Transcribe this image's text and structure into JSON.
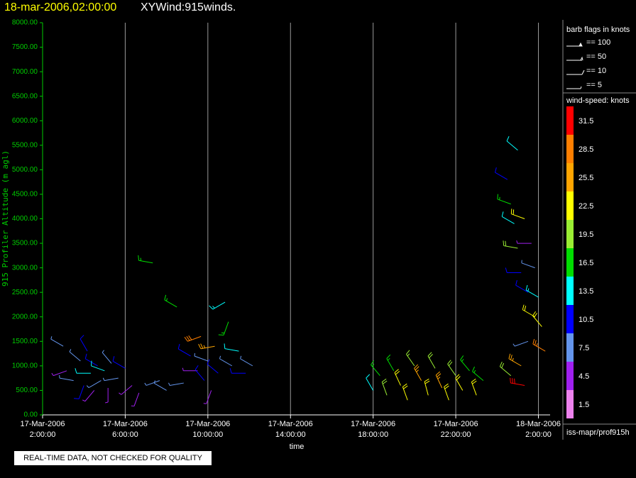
{
  "chart_data": {
    "type": "windbarb",
    "title": "18-mar-2006,02:00:00",
    "subtitle": "XYWind:915winds.",
    "ylabel": "915 Profiler Altitude (m agl)",
    "xlabel": "time",
    "ylim": [
      0,
      8000
    ],
    "yticks": [
      {
        "value": 0,
        "label": "0.00"
      },
      {
        "value": 500,
        "label": "500.00"
      },
      {
        "value": 1000,
        "label": "1000.00"
      },
      {
        "value": 1500,
        "label": "1500.00"
      },
      {
        "value": 2000,
        "label": "2000.00"
      },
      {
        "value": 2500,
        "label": "2500.00"
      },
      {
        "value": 3000,
        "label": "3000.00"
      },
      {
        "value": 3500,
        "label": "3500.00"
      },
      {
        "value": 4000,
        "label": "4000.00"
      },
      {
        "value": 4500,
        "label": "4500.00"
      },
      {
        "value": 5000,
        "label": "5000.00"
      },
      {
        "value": 5500,
        "label": "5500.00"
      },
      {
        "value": 6000,
        "label": "6000.00"
      },
      {
        "value": 6500,
        "label": "6500.00"
      },
      {
        "value": 7000,
        "label": "7000.00"
      },
      {
        "value": 7500,
        "label": "7500.00"
      },
      {
        "value": 8000,
        "label": "8000.00"
      }
    ],
    "xlim": [
      "2006-03-17T02:00",
      "2006-03-18T02:34"
    ],
    "xticks": [
      {
        "value": "2006-03-17T02:00",
        "label": [
          "17-Mar-2006",
          "2:00:00"
        ]
      },
      {
        "value": "2006-03-17T06:00",
        "label": [
          "17-Mar-2006",
          "6:00:00"
        ]
      },
      {
        "value": "2006-03-17T10:00",
        "label": [
          "17-Mar-2006",
          "10:00:00"
        ]
      },
      {
        "value": "2006-03-17T14:00",
        "label": [
          "17-Mar-2006",
          "14:00:00"
        ]
      },
      {
        "value": "2006-03-17T18:00",
        "label": [
          "17-Mar-2006",
          "18:00:00"
        ]
      },
      {
        "value": "2006-03-17T22:00",
        "label": [
          "17-Mar-2006",
          "22:00:00"
        ]
      },
      {
        "value": "2006-03-18T02:00",
        "label": [
          "18-Mar-2006",
          "2:00:00"
        ]
      }
    ],
    "grid": true,
    "barb_legend": {
      "title": "barb flags in knots",
      "entries": [
        "== 100",
        "== 50",
        "== 10",
        "== 5"
      ]
    },
    "colorbar": {
      "title": "wind-speed: knots",
      "levels": [
        1.5,
        4.5,
        7.5,
        10.5,
        13.5,
        16.5,
        19.5,
        22.5,
        25.5,
        28.5,
        31.5
      ],
      "colors": [
        "#ee82ee",
        "#a020f0",
        "#6495ed",
        "#0000ff",
        "#00ffff",
        "#00dd00",
        "#9aee33",
        "#ffff00",
        "#ffa500",
        "#ff7f00",
        "#ff0000"
      ]
    },
    "source": "iss-mapr/prof915h",
    "notice": "REAL-TIME DATA, NOT CHECKED FOR QUALITY",
    "barbs": [
      [
        "2006-03-17T03:00",
        1400,
        8,
        300
      ],
      [
        "2006-03-17T03:10",
        900,
        6,
        250
      ],
      [
        "2006-03-17T03:30",
        700,
        9,
        280
      ],
      [
        "2006-03-17T03:50",
        1100,
        7,
        310
      ],
      [
        "2006-03-17T04:00",
        600,
        11,
        200
      ],
      [
        "2006-03-17T04:10",
        1300,
        10,
        330
      ],
      [
        "2006-03-17T04:20",
        850,
        14,
        270
      ],
      [
        "2006-03-17T04:30",
        500,
        5,
        220
      ],
      [
        "2006-03-17T04:40",
        1000,
        12,
        300
      ],
      [
        "2006-03-17T04:50",
        700,
        8,
        240
      ],
      [
        "2006-03-17T05:00",
        900,
        13,
        290
      ],
      [
        "2006-03-17T05:10",
        550,
        6,
        180
      ],
      [
        "2006-03-17T05:20",
        1050,
        9,
        320
      ],
      [
        "2006-03-17T05:40",
        750,
        7,
        260
      ],
      [
        "2006-03-17T06:00",
        950,
        10,
        300
      ],
      [
        "2006-03-17T06:20",
        600,
        5,
        230
      ],
      [
        "2006-03-17T06:40",
        450,
        6,
        200
      ],
      [
        "2006-03-17T07:20",
        3100,
        18,
        280
      ],
      [
        "2006-03-17T07:40",
        700,
        8,
        250
      ],
      [
        "2006-03-17T08:00",
        500,
        7,
        300
      ],
      [
        "2006-03-17T08:30",
        2200,
        17,
        300
      ],
      [
        "2006-03-17T08:50",
        650,
        9,
        260
      ],
      [
        "2006-03-17T09:10",
        1200,
        10,
        300
      ],
      [
        "2006-03-17T09:30",
        900,
        6,
        270
      ],
      [
        "2006-03-17T09:40",
        1600,
        30,
        250
      ],
      [
        "2006-03-17T09:50",
        700,
        12,
        320
      ],
      [
        "2006-03-17T10:00",
        1100,
        8,
        290
      ],
      [
        "2006-03-17T10:10",
        500,
        5,
        200
      ],
      [
        "2006-03-17T10:20",
        1400,
        26,
        260
      ],
      [
        "2006-03-17T10:30",
        850,
        11,
        310
      ],
      [
        "2006-03-17T10:50",
        2300,
        15,
        240
      ],
      [
        "2006-03-17T11:00",
        1900,
        18,
        200
      ],
      [
        "2006-03-17T11:10",
        1000,
        9,
        300
      ],
      [
        "2006-03-17T11:30",
        1300,
        14,
        280
      ],
      [
        "2006-03-17T11:50",
        850,
        10,
        270
      ],
      [
        "2006-03-17T12:10",
        1000,
        7,
        300
      ],
      [
        "2006-03-17T18:00",
        500,
        14,
        330
      ],
      [
        "2006-03-17T18:20",
        800,
        18,
        320
      ],
      [
        "2006-03-17T18:40",
        400,
        21,
        340
      ],
      [
        "2006-03-17T19:00",
        900,
        17,
        330
      ],
      [
        "2006-03-17T19:20",
        600,
        23,
        335
      ],
      [
        "2006-03-17T19:40",
        300,
        24,
        340
      ],
      [
        "2006-03-17T20:00",
        1000,
        19,
        325
      ],
      [
        "2006-03-17T20:20",
        700,
        25,
        330
      ],
      [
        "2006-03-17T20:40",
        400,
        22,
        345
      ],
      [
        "2006-03-17T21:00",
        950,
        20,
        330
      ],
      [
        "2006-03-17T21:20",
        550,
        27,
        335
      ],
      [
        "2006-03-17T21:40",
        300,
        23,
        340
      ],
      [
        "2006-03-17T22:00",
        800,
        21,
        325
      ],
      [
        "2006-03-17T22:20",
        500,
        24,
        330
      ],
      [
        "2006-03-17T22:40",
        900,
        18,
        320
      ],
      [
        "2006-03-17T23:00",
        400,
        22,
        340
      ],
      [
        "2006-03-17T23:20",
        700,
        16,
        310
      ],
      [
        "2006-03-18T00:30",
        4800,
        12,
        300
      ],
      [
        "2006-03-18T00:40",
        4300,
        16,
        290
      ],
      [
        "2006-03-18T00:50",
        3900,
        14,
        300
      ],
      [
        "2006-03-18T01:00",
        5400,
        13,
        310
      ],
      [
        "2006-03-18T01:00",
        3400,
        20,
        280
      ],
      [
        "2006-03-18T01:10",
        2900,
        10,
        270
      ],
      [
        "2006-03-18T01:10",
        1000,
        26,
        300
      ],
      [
        "2006-03-18T01:20",
        4000,
        24,
        290
      ],
      [
        "2006-03-18T01:20",
        600,
        31,
        280
      ],
      [
        "2006-03-18T01:30",
        2500,
        12,
        300
      ],
      [
        "2006-03-18T01:30",
        1500,
        8,
        250
      ],
      [
        "2006-03-18T01:40",
        3500,
        6,
        270
      ],
      [
        "2006-03-18T01:50",
        2000,
        22,
        300
      ],
      [
        "2006-03-18T01:50",
        3000,
        9,
        290
      ],
      [
        "2006-03-18T02:00",
        2400,
        15,
        300
      ],
      [
        "2006-03-18T02:10",
        1800,
        23,
        320
      ],
      [
        "2006-03-18T02:20",
        1300,
        28,
        300
      ],
      [
        "2006-03-18T00:40",
        800,
        20,
        310
      ]
    ]
  }
}
